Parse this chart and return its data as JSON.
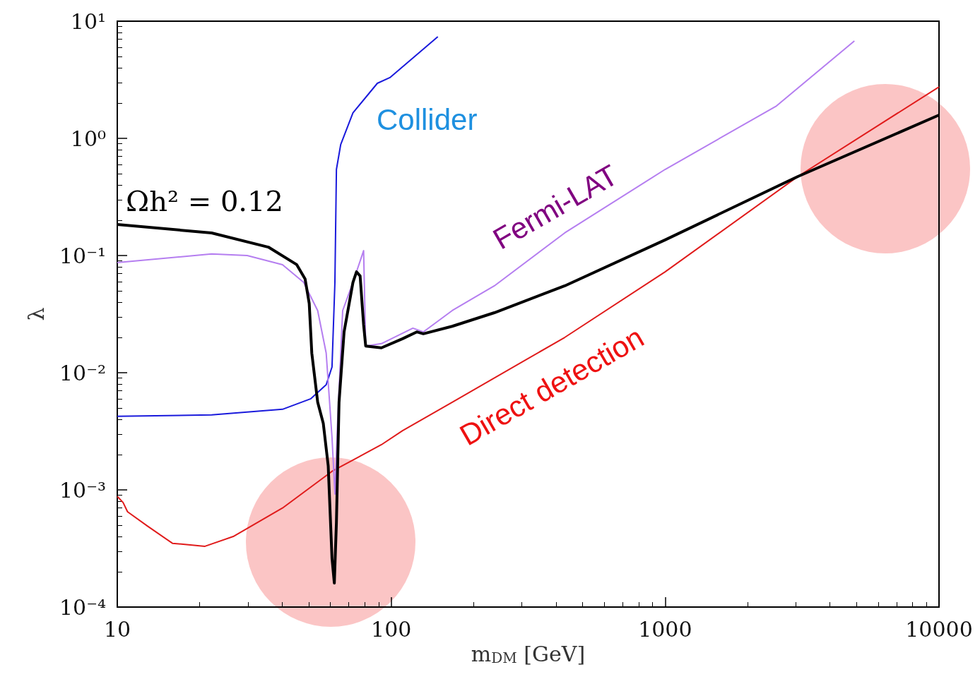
{
  "chart_data": {
    "type": "line",
    "xlabel": "m$_{DM}$ [GeV]",
    "ylabel": "λ",
    "log": "xy",
    "marker": "none",
    "xlim": [
      10,
      10000
    ],
    "xticks": [
      10,
      100,
      1000,
      10000
    ],
    "ylim": [
      0.0001,
      10
    ],
    "yticks": [
      {
        "value": 0.0001,
        "label": "10⁻⁴"
      },
      {
        "value": 0.001,
        "label": "10⁻³"
      },
      {
        "value": 0.01,
        "label": "10⁻²"
      },
      {
        "value": 0.1,
        "label": "10⁻¹"
      },
      {
        "value": 1,
        "label": "10⁰"
      },
      {
        "value": 10,
        "label": "10¹"
      }
    ],
    "series": [
      {
        "color": "#000000",
        "x": [
          10,
          22.1,
          35.6,
          45.2,
          48.5,
          50.2,
          51.3,
          53.9,
          56.5,
          58.9,
          60.8,
          62.0,
          63.1,
          64.5,
          67.3,
          72.5,
          74.7,
          77.0,
          79.3,
          80.7,
          92.1,
          110,
          124,
          131,
          167,
          238,
          430,
          1000,
          3055,
          10000
        ],
        "values": [
          0.184,
          0.156,
          0.118,
          0.0836,
          0.063,
          0.039,
          0.0147,
          0.0056,
          0.0037,
          0.0016,
          0.00026,
          0.00016,
          0.00053,
          0.0056,
          0.0223,
          0.059,
          0.0726,
          0.067,
          0.0257,
          0.0169,
          0.0163,
          0.0195,
          0.0223,
          0.0215,
          0.0249,
          0.0325,
          0.0551,
          0.136,
          0.473,
          1.58
        ]
      },
      {
        "color": "#b57ef0",
        "x": [
          10,
          22.1,
          29.8,
          40.1,
          47.9,
          53.9,
          57.9,
          60.8,
          62.3,
          63.7,
          66.5,
          72.5,
          79.3,
          80.7,
          92.1,
          120,
          131,
          167,
          238,
          430,
          1000,
          2551,
          4910
        ],
        "values": [
          0.0871,
          0.103,
          0.1,
          0.0836,
          0.059,
          0.0339,
          0.0147,
          0.0028,
          0.00092,
          0.0037,
          0.0339,
          0.059,
          0.11,
          0.0169,
          0.0177,
          0.024,
          0.0223,
          0.0339,
          0.0551,
          0.156,
          0.543,
          1.89,
          6.78
        ]
      },
      {
        "color": "#1a1adc",
        "x": [
          10,
          22.1,
          40.1,
          50.9,
          57.9,
          60.8,
          62.3,
          63.1,
          65.4,
          72.5,
          89.0,
          98.9,
          148
        ],
        "values": [
          0.00424,
          0.00436,
          0.00487,
          0.006,
          0.0079,
          0.0112,
          0.059,
          0.543,
          0.883,
          1.65,
          2.95,
          3.3,
          7.36
        ]
      },
      {
        "color": "#e01b1b",
        "x": [
          10,
          10.5,
          10.9,
          12.9,
          15.9,
          20.9,
          26.5,
          40.1,
          60.8,
          92.1,
          110,
          167,
          430,
          1000,
          3055,
          10000
        ],
        "values": [
          0.00088,
          0.00078,
          0.00065,
          0.00049,
          0.00035,
          0.00033,
          0.0004,
          0.0007,
          0.00144,
          0.00243,
          0.0032,
          0.0056,
          0.02,
          0.0726,
          0.473,
          2.75
        ]
      }
    ],
    "annotations": [
      "Ωh² = 0.12",
      "Fermi-LAT",
      "Collider",
      "Direct detection"
    ]
  }
}
